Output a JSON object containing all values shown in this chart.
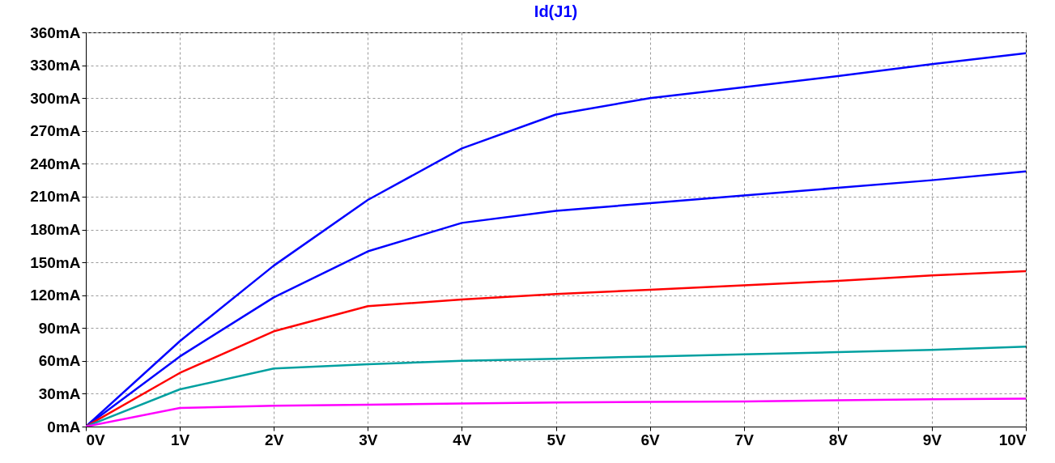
{
  "chart_data": {
    "type": "line",
    "title": "Id(J1)",
    "x": [
      0,
      1,
      2,
      3,
      4,
      5,
      6,
      7,
      8,
      9,
      10
    ],
    "series": [
      {
        "color": "#0000ff",
        "values": [
          0,
          78,
          147,
          207,
          254,
          285,
          300,
          310,
          320,
          331,
          341
        ]
      },
      {
        "color": "#0000ff",
        "values": [
          0,
          64,
          118,
          160,
          186,
          197,
          204,
          211,
          218,
          225,
          233
        ]
      },
      {
        "color": "#ff0000",
        "values": [
          0,
          49,
          87,
          110,
          116,
          121,
          125,
          129,
          133,
          138,
          142
        ]
      },
      {
        "color": "#00a0a0",
        "values": [
          0,
          34,
          53,
          57,
          60,
          62,
          64,
          66,
          68,
          70,
          73
        ]
      },
      {
        "color": "#ff00ff",
        "values": [
          0,
          17,
          19,
          20,
          21,
          22,
          22.5,
          23,
          24,
          25,
          25.5
        ]
      }
    ],
    "xlim": [
      0,
      10
    ],
    "xticks": [
      {
        "value": 0,
        "label": "0V"
      },
      {
        "value": 1,
        "label": "1V"
      },
      {
        "value": 2,
        "label": "2V"
      },
      {
        "value": 3,
        "label": "3V"
      },
      {
        "value": 4,
        "label": "4V"
      },
      {
        "value": 5,
        "label": "5V"
      },
      {
        "value": 6,
        "label": "6V"
      },
      {
        "value": 7,
        "label": "7V"
      },
      {
        "value": 8,
        "label": "8V"
      },
      {
        "value": 9,
        "label": "9V"
      },
      {
        "value": 10,
        "label": "10V"
      }
    ],
    "ylim": [
      0,
      360
    ],
    "yticks": [
      {
        "value": 0,
        "label": "0mA"
      },
      {
        "value": 30,
        "label": "30mA"
      },
      {
        "value": 60,
        "label": "60mA"
      },
      {
        "value": 90,
        "label": "90mA"
      },
      {
        "value": 120,
        "label": "120mA"
      },
      {
        "value": 150,
        "label": "150mA"
      },
      {
        "value": 180,
        "label": "180mA"
      },
      {
        "value": 210,
        "label": "210mA"
      },
      {
        "value": 240,
        "label": "240mA"
      },
      {
        "value": 270,
        "label": "270mA"
      },
      {
        "value": 300,
        "label": "300mA"
      },
      {
        "value": 330,
        "label": "330mA"
      },
      {
        "value": 360,
        "label": "360mA"
      }
    ],
    "grid": true,
    "line_style": "solid",
    "marker": "none"
  }
}
